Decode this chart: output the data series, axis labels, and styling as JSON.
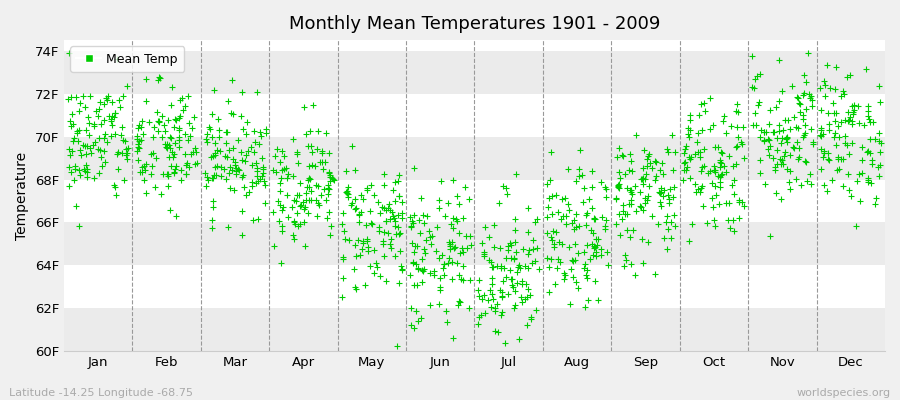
{
  "title": "Monthly Mean Temperatures 1901 - 2009",
  "ylabel": "Temperature",
  "xlabel_bottom_left": "Latitude -14.25 Longitude -68.75",
  "xlabel_bottom_right": "worldspecies.org",
  "legend_label": "Mean Temp",
  "marker_color": "#00CC00",
  "background_color": "#F0F0F0",
  "plot_bg": "#FFFFFF",
  "strip_colors": [
    "#EBEBEB",
    "#FFFFFF"
  ],
  "ylim": [
    60,
    74.5
  ],
  "yticks": [
    60,
    62,
    64,
    66,
    68,
    70,
    72,
    74
  ],
  "ytick_labels": [
    "60F",
    "62F",
    "64F",
    "66F",
    "68F",
    "70F",
    "72F",
    "74F"
  ],
  "months": [
    "Jan",
    "Feb",
    "Mar",
    "Apr",
    "May",
    "Jun",
    "Jul",
    "Aug",
    "Sep",
    "Oct",
    "Nov",
    "Dec"
  ],
  "n_years": 109,
  "seed": 42,
  "monthly_mean": [
    69.8,
    69.5,
    69.0,
    67.8,
    65.8,
    64.2,
    63.8,
    65.2,
    67.2,
    68.8,
    70.2,
    70.0
  ],
  "monthly_std": [
    1.5,
    1.5,
    1.3,
    1.4,
    1.6,
    1.8,
    1.8,
    1.6,
    1.6,
    1.7,
    1.7,
    1.6
  ]
}
